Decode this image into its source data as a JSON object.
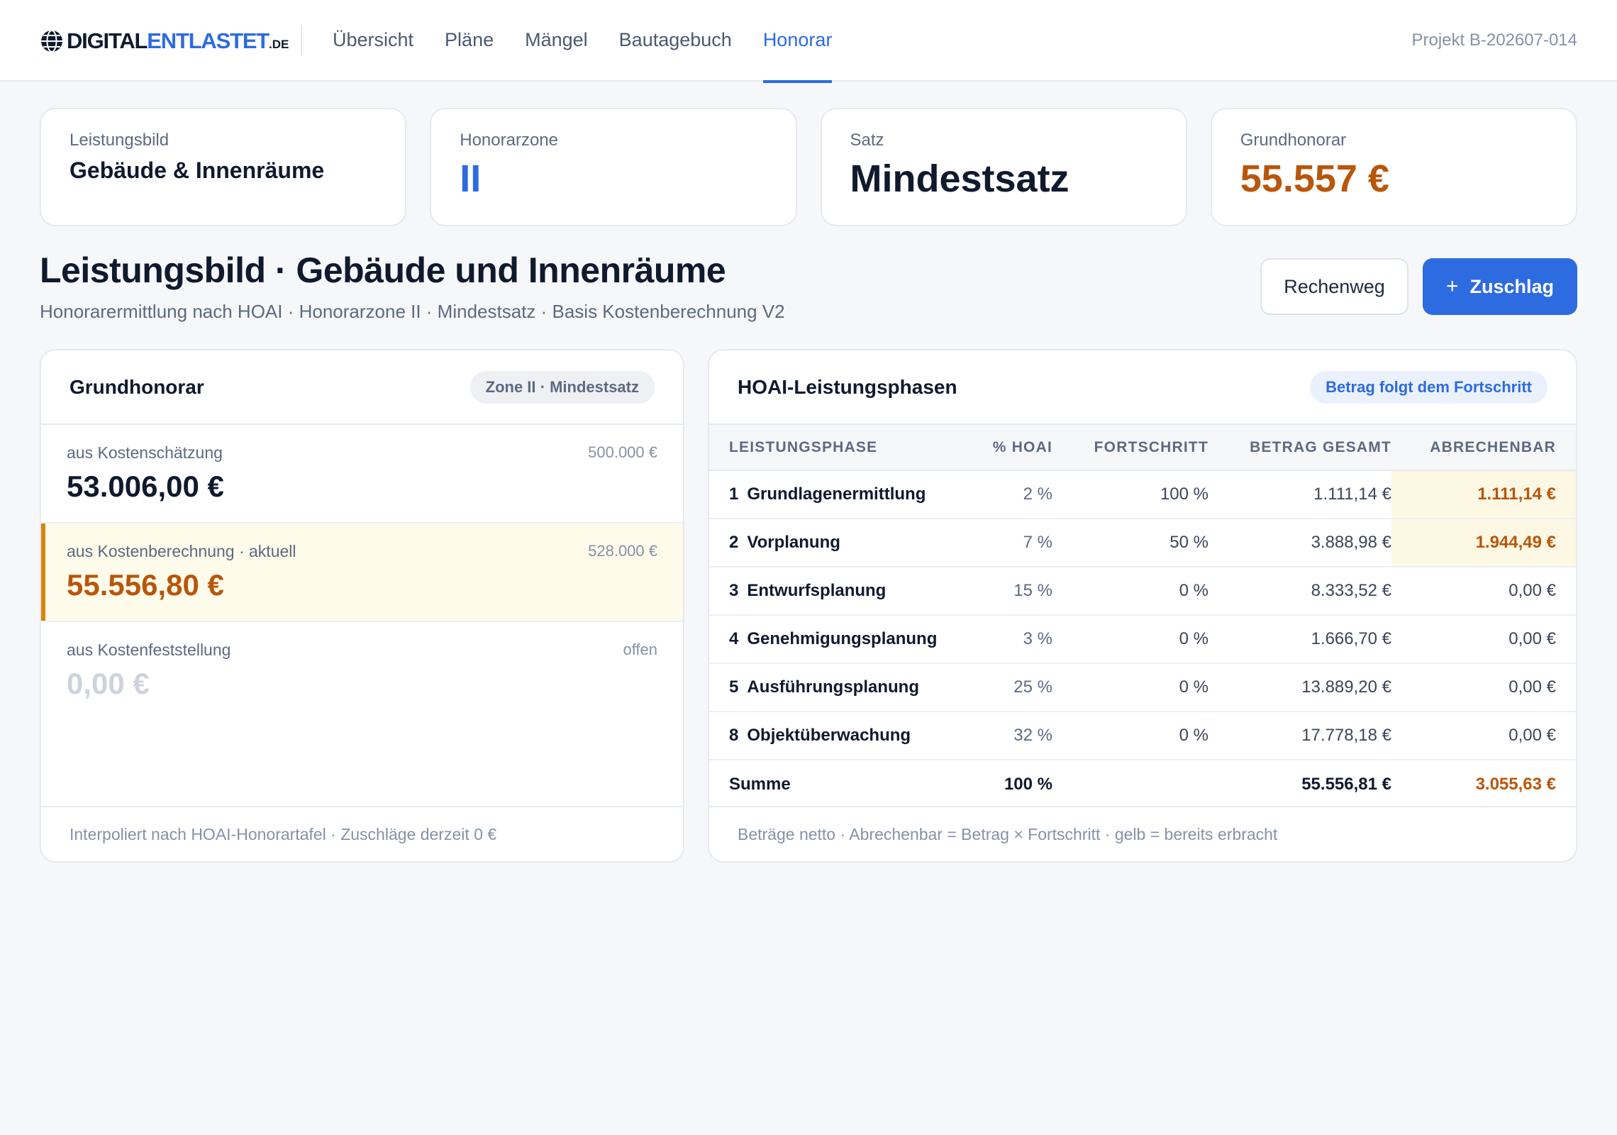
{
  "header": {
    "logo": {
      "part1": "DIGITAL",
      "part2": "ENTLASTET",
      "tld": ".DE"
    },
    "nav": [
      "Übersicht",
      "Pläne",
      "Mängel",
      "Bautagebuch",
      "Honorar"
    ],
    "active_nav": "Honorar",
    "project_id": "Projekt B-202607-014"
  },
  "summary": {
    "leistungsbild": {
      "label": "Leistungsbild",
      "value": "Gebäude & Innenräume"
    },
    "honorarzone": {
      "label": "Honorarzone",
      "value": "II"
    },
    "satz": {
      "label": "Satz",
      "value": "Mindestsatz"
    },
    "grundhonorar": {
      "label": "Grundhonorar",
      "value": "55.557 €"
    }
  },
  "page": {
    "title": "Leistungsbild · Gebäude und Innenräume",
    "subtitle": "Honorarermittlung nach HOAI · Honorarzone II · Mindestsatz · Basis Kostenberechnung V2",
    "btn_rechenweg": "Rechenweg",
    "btn_zuschlag": "Zuschlag"
  },
  "grundhonorar_panel": {
    "title": "Grundhonorar",
    "chip": "Zone II · Mindestsatz",
    "rows": [
      {
        "label": "aus Kostenschätzung",
        "basis": "500.000 €",
        "value": "53.006,00 €"
      },
      {
        "label": "aus Kostenberechnung · aktuell",
        "basis": "528.000 €",
        "value": "55.556,80 €"
      },
      {
        "label": "aus Kostenfeststellung",
        "basis": "offen",
        "value": "0,00 €"
      }
    ],
    "footer": "Interpoliert nach HOAI-Honorartafel · Zuschläge derzeit 0 €"
  },
  "phasen_panel": {
    "title": "HOAI-Leistungsphasen",
    "chip": "Betrag folgt dem Fortschritt",
    "columns": [
      "LEISTUNGSPHASE",
      "% HOAI",
      "FORTSCHRITT",
      "BETRAG GESAMT",
      "ABRECHENBAR"
    ],
    "rows": [
      {
        "nr": "1",
        "name": "Grundlagenermittlung",
        "pct": "2 %",
        "progress": "100 %",
        "total": "1.111,14 €",
        "billable": "1.111,14 €"
      },
      {
        "nr": "2",
        "name": "Vorplanung",
        "pct": "7 %",
        "progress": "50 %",
        "total": "3.888,98 €",
        "billable": "1.944,49 €"
      },
      {
        "nr": "3",
        "name": "Entwurfsplanung",
        "pct": "15 %",
        "progress": "0 %",
        "total": "8.333,52 €",
        "billable": "0,00 €"
      },
      {
        "nr": "4",
        "name": "Genehmigungsplanung",
        "pct": "3 %",
        "progress": "0 %",
        "total": "1.666,70 €",
        "billable": "0,00 €"
      },
      {
        "nr": "5",
        "name": "Ausführungsplanung",
        "pct": "25 %",
        "progress": "0 %",
        "total": "13.889,20 €",
        "billable": "0,00 €"
      },
      {
        "nr": "8",
        "name": "Objektüberwachung",
        "pct": "32 %",
        "progress": "0 %",
        "total": "17.778,18 €",
        "billable": "0,00 €"
      }
    ],
    "sum": {
      "label": "Summe",
      "pct": "100 %",
      "total": "55.556,81 €",
      "billable": "3.055,63 €"
    },
    "footer": "Beträge netto · Abrechenbar = Betrag × Fortschritt · gelb = bereits erbracht"
  }
}
